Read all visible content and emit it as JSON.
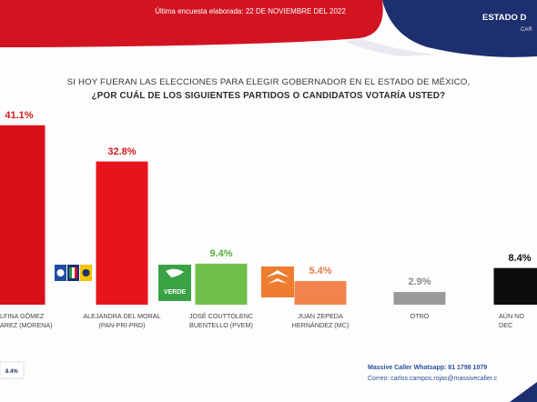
{
  "header": {
    "survey_date_note": "Última encuesta elaborada: 22 DE NOVIEMBRE DEL 2022",
    "region_label": "ESTADO D",
    "region_sub": "CAR"
  },
  "question": {
    "line1": "SI HOY FUERAN LAS ELECCIONES PARA ELEGIR GOBERNADOR EN EL ESTADO DE MÉXICO,",
    "line2": "¿POR CUÁL DE LOS SIGUIENTES PARTIDOS O CANDIDATOS  VOTARÍA USTED?"
  },
  "logos": {
    "verde_label": "VERDE"
  },
  "chart_data": {
    "type": "bar",
    "title": "SI HOY FUERAN LAS ELECCIONES PARA ELEGIR GOBERNADOR EN EL ESTADO DE MÉXICO, ¿POR CUÁL DE LOS SIGUIENTES PARTIDOS O CANDIDATOS  VOTARÍA USTED?",
    "xlabel": "",
    "ylabel": "",
    "ylim": [
      0,
      45
    ],
    "grid": false,
    "categories": [
      [
        "DELFINA GÓMEZ",
        "ÁLVAREZ (MORENA)"
      ],
      [
        "ALEJANDRA DEL MORAL",
        "(PAN-PRI-PRD)"
      ],
      [
        "JOSÉ COUTTOLENC",
        "BUENTELLO (PVEM)"
      ],
      [
        "JUAN ZEPEDA",
        "HERNÁNDEZ (MC)"
      ],
      [
        "OTRO"
      ],
      [
        "AÚN NO DECIDE"
      ]
    ],
    "category_labels_visible": [
      [
        "LFINA GÓMEZ",
        "AREZ (MORENA)"
      ],
      [
        "ALEJANDRA DEL MORAL",
        "(PAN-PRI-PRD)"
      ],
      [
        "JOSÉ COUTTOLENC",
        "BUENTELLO (PVEM)"
      ],
      [
        "JUAN ZEPEDA",
        "HERNÁNDEZ (MC)"
      ],
      [
        "OTRO"
      ],
      [
        "AÚN NO DEC"
      ]
    ],
    "values": [
      41.1,
      32.8,
      9.4,
      5.4,
      2.9,
      8.4
    ],
    "value_labels": [
      "41.1%",
      "32.8%",
      "9.4%",
      "5.4%",
      "2.9%",
      "8.4%"
    ],
    "colors": [
      "#d7101a",
      "#e8141c",
      "#6fbf4a",
      "#f2834c",
      "#9a9a9a",
      "#0c0c0c"
    ],
    "label_colors": [
      "#d71920",
      "#d71920",
      "#5bab3c",
      "#e4794a",
      "#8a8a8a",
      "#111111"
    ]
  },
  "mini_legend": {
    "value": "8.4%"
  },
  "footer": {
    "contact_line1": "Massive Caller Whatsapp: 81 1798 1079",
    "contact_line2": "Correo: carlos.campos.rojas@massivecaller.c"
  },
  "colors": {
    "header_red": "#d21422",
    "header_navy": "#1d2f6f"
  }
}
